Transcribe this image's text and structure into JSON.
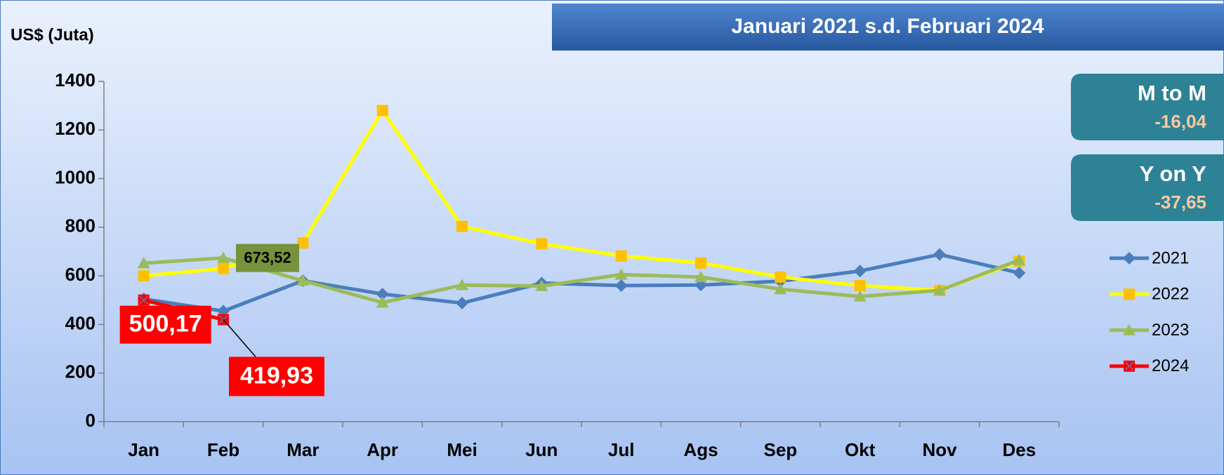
{
  "chart_data": {
    "type": "line",
    "title": "Januari 2021 s.d. Februari 2024",
    "y_label": "US$ (Juta)",
    "categories": [
      "Jan",
      "Feb",
      "Mar",
      "Apr",
      "Mei",
      "Jun",
      "Jul",
      "Ags",
      "Sep",
      "Okt",
      "Nov",
      "Des"
    ],
    "ylim": [
      0,
      1400
    ],
    "yticks": [
      0,
      200,
      400,
      600,
      800,
      1000,
      1200,
      1400
    ],
    "legend": "right",
    "series": [
      {
        "name": "2021",
        "color": "#4a7ebb",
        "marker_color": "#4a7ebb",
        "marker": "diamond",
        "values": [
          505,
          455,
          580,
          525,
          488,
          570,
          560,
          562,
          578,
          620,
          688,
          612
        ]
      },
      {
        "name": "2022",
        "color": "#ffff00",
        "marker_color": "#ffc000",
        "marker": "square",
        "values": [
          600,
          630,
          735,
          1280,
          803,
          732,
          682,
          653,
          595,
          560,
          540,
          660
        ]
      },
      {
        "name": "2023",
        "color": "#9bbb59",
        "marker_color": "#9bbb59",
        "marker": "triangle",
        "values": [
          652,
          673.52,
          580,
          490,
          562,
          558,
          605,
          595,
          545,
          515,
          540,
          665
        ],
        "value_labels": [
          null,
          "673,52",
          null,
          null,
          null,
          null,
          null,
          null,
          null,
          null,
          null,
          null
        ]
      },
      {
        "name": "2024",
        "color": "#ff0000",
        "marker_color": "#ff0000",
        "marker": "xsquare",
        "values": [
          500.17,
          419.93,
          null,
          null,
          null,
          null,
          null,
          null,
          null,
          null,
          null,
          null
        ],
        "value_labels": [
          "500,17",
          "419,93",
          null,
          null,
          null,
          null,
          null,
          null,
          null,
          null,
          null,
          null
        ]
      }
    ],
    "annotations": [
      {
        "title": "M to M",
        "value": "-16,04"
      },
      {
        "title": "Y on Y",
        "value": "-37,65"
      }
    ]
  }
}
